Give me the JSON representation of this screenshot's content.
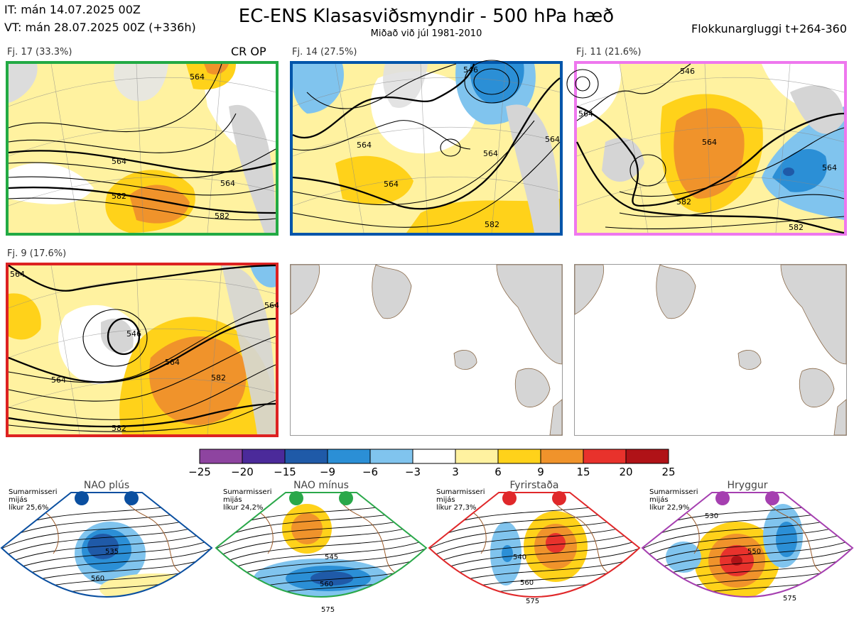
{
  "header": {
    "it_line": "IT: mán 14.07.2025 00Z",
    "vt_line": "VT: mán 28.07.2025 00Z  (+336h)",
    "title": "EC-ENS Klasasviðsmyndir - 500 hPa hæð",
    "subtitle": "Miðað við júl 1981-2010",
    "window": "Flokkunargluggi t+264-360"
  },
  "panels": [
    {
      "label": "Fj. 17 (33.3%)",
      "tag": "CR OP",
      "border_color": "#22aa44",
      "contours": [
        "564",
        "564",
        "582",
        "582",
        "564"
      ]
    },
    {
      "label": "Fj. 14 (27.5%)",
      "tag": "",
      "border_color": "#0055aa",
      "contours": [
        "546",
        "564",
        "564",
        "564",
        "582",
        "564"
      ]
    },
    {
      "label": "Fj. 11 (21.6%)",
      "tag": "",
      "border_color": "#ee77ee",
      "contours": [
        "546",
        "564",
        "564",
        "582",
        "582",
        "564"
      ]
    },
    {
      "label": "Fj. 9 (17.6%)",
      "tag": "",
      "border_color": "#dd2222",
      "contours": [
        "564",
        "546",
        "564",
        "564",
        "582",
        "582",
        "564"
      ]
    }
  ],
  "colorbar": {
    "colors": [
      "#8e44a0",
      "#4b2a9a",
      "#1f5aa8",
      "#2b8fd6",
      "#80c4ee",
      "#ffffff",
      "#fff2a0",
      "#ffd21a",
      "#f0932b",
      "#e8322c",
      "#b01217"
    ],
    "ticks": [
      "−25",
      "−20",
      "−15",
      "−9",
      "−6",
      "−3",
      "3",
      "6",
      "9",
      "15",
      "20",
      "25"
    ]
  },
  "regimes": [
    {
      "name": "NAO plús",
      "season": "Sumarmisseri",
      "freq_label": "mijás",
      "prob": "líkur 25,6%",
      "color": "#0a4fa0",
      "contours": [
        "535",
        "560"
      ]
    },
    {
      "name": "NAO mínus",
      "season": "Sumarmisseri",
      "freq_label": "mijás",
      "prob": "líkur 24,2%",
      "color": "#2aa84a",
      "contours": [
        "545",
        "560",
        "575"
      ]
    },
    {
      "name": "Fyrirstaða",
      "season": "Sumarmisseri",
      "freq_label": "mijás",
      "prob": "líkur 27,3%",
      "color": "#e0282a",
      "contours": [
        "540",
        "560",
        "575"
      ]
    },
    {
      "name": "Hryggur",
      "season": "Sumarmisseri",
      "freq_label": "mijás",
      "prob": "líkur 22,9%",
      "color": "#a53fb0",
      "contours": [
        "530",
        "550",
        "575"
      ]
    }
  ]
}
